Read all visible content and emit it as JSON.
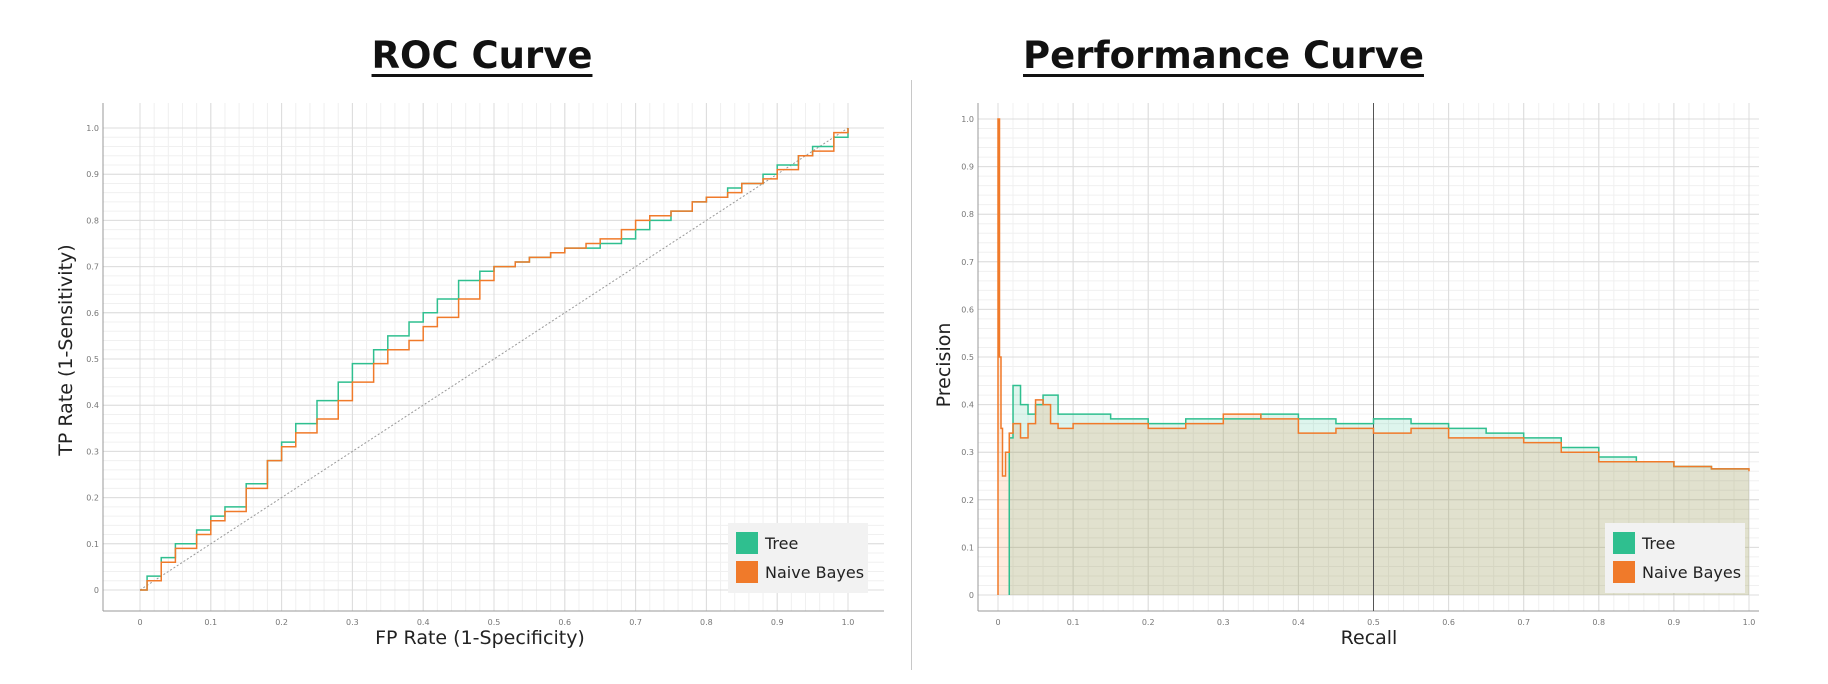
{
  "chart_data": [
    {
      "type": "line",
      "title": "ROC Curve",
      "xlabel": "FP Rate (1-Specificity)",
      "ylabel": "TP Rate (1-Sensitivity)",
      "xlim": [
        0,
        1
      ],
      "ylim": [
        0,
        1
      ],
      "xticks": [
        "0",
        "0.1",
        "0.2",
        "0.3",
        "0.4",
        "0.5",
        "0.6",
        "0.7",
        "0.8",
        "0.9",
        "1.0"
      ],
      "yticks": [
        "0",
        "0.1",
        "0.2",
        "0.3",
        "0.4",
        "0.5",
        "0.6",
        "0.7",
        "0.8",
        "0.9",
        "1.0"
      ],
      "grid": true,
      "legend": "bottom-right",
      "diagonal": true,
      "series": [
        {
          "name": "Tree",
          "color": "#2fbf8f",
          "x": [
            0,
            0.01,
            0.03,
            0.05,
            0.08,
            0.1,
            0.12,
            0.15,
            0.18,
            0.2,
            0.22,
            0.25,
            0.28,
            0.3,
            0.33,
            0.35,
            0.38,
            0.4,
            0.42,
            0.45,
            0.48,
            0.5,
            0.53,
            0.55,
            0.58,
            0.6,
            0.63,
            0.65,
            0.68,
            0.7,
            0.72,
            0.75,
            0.78,
            0.8,
            0.83,
            0.85,
            0.88,
            0.9,
            0.93,
            0.95,
            0.98,
            1.0
          ],
          "y": [
            0,
            0.03,
            0.07,
            0.1,
            0.13,
            0.16,
            0.18,
            0.23,
            0.28,
            0.32,
            0.36,
            0.41,
            0.45,
            0.49,
            0.52,
            0.55,
            0.58,
            0.6,
            0.63,
            0.67,
            0.69,
            0.7,
            0.71,
            0.72,
            0.73,
            0.74,
            0.74,
            0.75,
            0.76,
            0.78,
            0.8,
            0.82,
            0.84,
            0.85,
            0.87,
            0.88,
            0.9,
            0.92,
            0.94,
            0.96,
            0.98,
            1.0
          ]
        },
        {
          "name": "Naive Bayes",
          "color": "#f07a2a",
          "x": [
            0,
            0.01,
            0.03,
            0.05,
            0.08,
            0.1,
            0.12,
            0.15,
            0.18,
            0.2,
            0.22,
            0.25,
            0.28,
            0.3,
            0.33,
            0.35,
            0.38,
            0.4,
            0.42,
            0.45,
            0.48,
            0.5,
            0.53,
            0.55,
            0.58,
            0.6,
            0.63,
            0.65,
            0.68,
            0.7,
            0.72,
            0.75,
            0.78,
            0.8,
            0.83,
            0.85,
            0.88,
            0.9,
            0.93,
            0.95,
            0.98,
            1.0
          ],
          "y": [
            0,
            0.02,
            0.06,
            0.09,
            0.12,
            0.15,
            0.17,
            0.22,
            0.28,
            0.31,
            0.34,
            0.37,
            0.41,
            0.45,
            0.49,
            0.52,
            0.54,
            0.57,
            0.59,
            0.63,
            0.67,
            0.7,
            0.71,
            0.72,
            0.73,
            0.74,
            0.75,
            0.76,
            0.78,
            0.8,
            0.81,
            0.82,
            0.84,
            0.85,
            0.86,
            0.88,
            0.89,
            0.91,
            0.94,
            0.95,
            0.99,
            1.0
          ]
        }
      ]
    },
    {
      "type": "area",
      "title": "Performance Curve",
      "xlabel": "Recall",
      "ylabel": "Precision",
      "xlim": [
        0,
        1
      ],
      "ylim": [
        0,
        1
      ],
      "xticks": [
        "0",
        "0.1",
        "0.2",
        "0.3",
        "0.4",
        "0.5",
        "0.6",
        "0.7",
        "0.8",
        "0.9",
        "1.0"
      ],
      "yticks": [
        "0",
        "0.1",
        "0.2",
        "0.3",
        "0.4",
        "0.5",
        "0.6",
        "0.7",
        "0.8",
        "0.9",
        "1.0"
      ],
      "grid": true,
      "legend": "bottom-right",
      "vline_x": 0.5,
      "series": [
        {
          "name": "Tree",
          "color": "#2fbf8f",
          "x": [
            0.015,
            0.02,
            0.03,
            0.04,
            0.05,
            0.06,
            0.08,
            0.1,
            0.15,
            0.2,
            0.25,
            0.3,
            0.35,
            0.4,
            0.45,
            0.5,
            0.55,
            0.6,
            0.65,
            0.7,
            0.75,
            0.8,
            0.85,
            0.9,
            0.95,
            1.0
          ],
          "y": [
            0.33,
            0.44,
            0.4,
            0.38,
            0.4,
            0.42,
            0.38,
            0.38,
            0.37,
            0.36,
            0.37,
            0.37,
            0.38,
            0.37,
            0.36,
            0.37,
            0.36,
            0.35,
            0.34,
            0.33,
            0.31,
            0.29,
            0.28,
            0.27,
            0.265,
            0.265
          ]
        },
        {
          "name": "Naive Bayes",
          "color": "#f07a2a",
          "x": [
            0,
            0.002,
            0.004,
            0.006,
            0.01,
            0.015,
            0.02,
            0.03,
            0.04,
            0.05,
            0.06,
            0.07,
            0.08,
            0.1,
            0.15,
            0.2,
            0.25,
            0.3,
            0.35,
            0.4,
            0.45,
            0.5,
            0.55,
            0.6,
            0.65,
            0.7,
            0.75,
            0.8,
            0.85,
            0.9,
            0.95,
            1.0
          ],
          "y": [
            1.0,
            0.5,
            0.35,
            0.25,
            0.3,
            0.34,
            0.36,
            0.33,
            0.36,
            0.41,
            0.4,
            0.36,
            0.35,
            0.36,
            0.36,
            0.35,
            0.36,
            0.38,
            0.37,
            0.34,
            0.35,
            0.34,
            0.35,
            0.33,
            0.33,
            0.32,
            0.3,
            0.28,
            0.28,
            0.27,
            0.265,
            0.26
          ]
        }
      ]
    }
  ]
}
